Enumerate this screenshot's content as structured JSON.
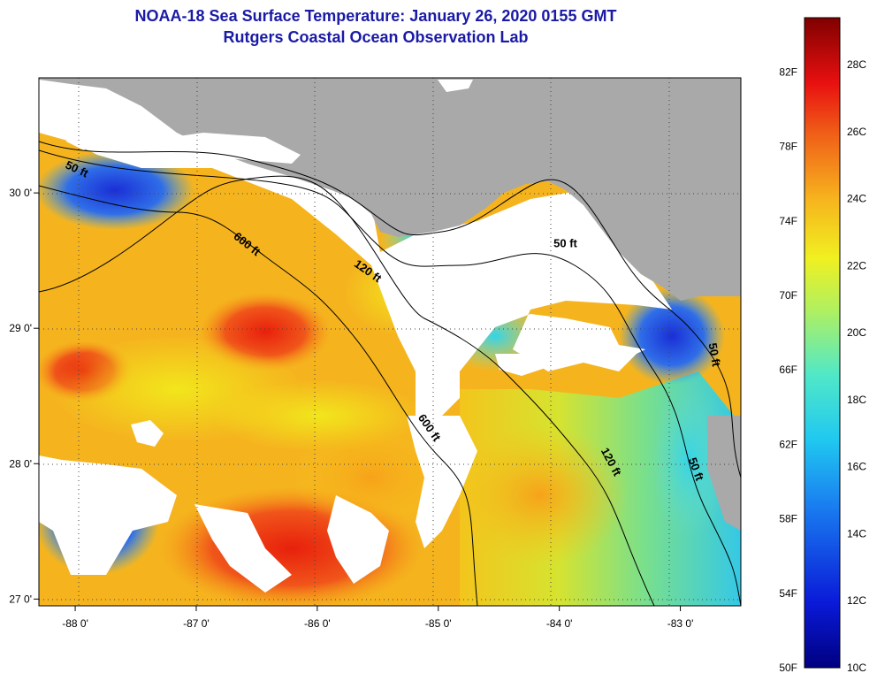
{
  "title": "NOAA-18 Sea Surface Temperature:  January 26, 2020 0155 GMT",
  "subtitle": "Rutgers Coastal Ocean Observation Lab",
  "colors": {
    "land": "#a9a9a9",
    "cloud": "#ffffff",
    "title": "#1a1aa6"
  },
  "map": {
    "lon_range": [
      -88.3,
      -82.5
    ],
    "lat_range": [
      26.95,
      30.85
    ],
    "lon_ticks": [
      {
        "value": -88,
        "label": "-88 0'"
      },
      {
        "value": -87,
        "label": "-87 0'"
      },
      {
        "value": -86,
        "label": "-86 0'"
      },
      {
        "value": -85,
        "label": "-85 0'"
      },
      {
        "value": -84,
        "label": "-84 0'"
      },
      {
        "value": -83,
        "label": "-83 0'"
      }
    ],
    "lat_ticks": [
      {
        "value": 30,
        "label": "30 0'"
      },
      {
        "value": 29,
        "label": "29 0'"
      },
      {
        "value": 28,
        "label": "28 0'"
      },
      {
        "value": 27,
        "label": "27 0'"
      }
    ],
    "contour_labels": [
      {
        "text": "50 ft",
        "lon": -88.0,
        "lat": 30.15,
        "angle": 25
      },
      {
        "text": "600 ft",
        "lon": -86.6,
        "lat": 29.6,
        "angle": 38
      },
      {
        "text": "120 ft",
        "lon": -85.6,
        "lat": 29.4,
        "angle": 35
      },
      {
        "text": "50 ft",
        "lon": -83.95,
        "lat": 29.6,
        "angle": 0
      },
      {
        "text": "600 ft",
        "lon": -85.1,
        "lat": 28.25,
        "angle": 55
      },
      {
        "text": "120 ft",
        "lon": -83.6,
        "lat": 28.0,
        "angle": 62
      },
      {
        "text": "50 ft",
        "lon": -82.9,
        "lat": 27.95,
        "angle": 70
      },
      {
        "text": "50 ft",
        "lon": -82.75,
        "lat": 28.8,
        "angle": 80
      }
    ]
  },
  "colorbar": {
    "min_c": 10,
    "max_c": 29.4,
    "celsius_labels": [
      "28C",
      "26C",
      "24C",
      "22C",
      "20C",
      "18C",
      "16C",
      "14C",
      "12C",
      "10C"
    ],
    "celsius_values": [
      28,
      26,
      24,
      22,
      20,
      18,
      16,
      14,
      12,
      10
    ],
    "fahrenheit_labels": [
      "82F",
      "78F",
      "74F",
      "70F",
      "66F",
      "62F",
      "58F",
      "54F",
      "50F"
    ],
    "fahrenheit_values": [
      82,
      78,
      74,
      70,
      66,
      62,
      58,
      54,
      50
    ]
  }
}
